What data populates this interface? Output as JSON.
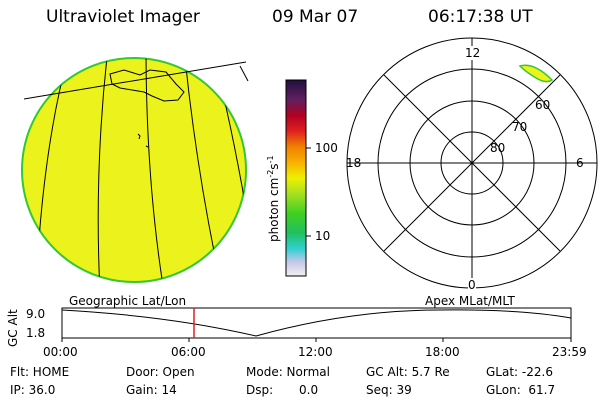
{
  "header": {
    "title": "Ultraviolet Imager",
    "date": "09 Mar 07",
    "time": "06:17:38 UT"
  },
  "colorbar": {
    "unit_label": "photon cm",
    "unit_exp1": "-2",
    "unit_mid": "s",
    "unit_exp2": "-1",
    "ticks": [
      "100",
      "10"
    ]
  },
  "polar_plot": {
    "mlt_labels": {
      "top": "12",
      "right": "6",
      "bottom": "0",
      "left": "18"
    },
    "mlat_labels": [
      "60",
      "70",
      "80"
    ]
  },
  "altitude_panel": {
    "axis_label": "GC Alt",
    "y_ticks": [
      "9.0",
      "1.8"
    ],
    "left_caption": "Geographic Lat/Lon",
    "right_caption": "Apex MLat/MLT",
    "x_ticks": [
      "00:00",
      "06:00",
      "12:00",
      "18:00",
      "23:59"
    ]
  },
  "info": {
    "row1": [
      "Flt: HOME",
      "Door: Open",
      "Mode: Normal",
      "GC Alt: 5.7 Re",
      "GLat: -22.6"
    ],
    "row2": [
      "IP: 36.0",
      "Gain: 14",
      "Dsp:",
      "0.0",
      "Seq: 39",
      "GLon:  61.7"
    ]
  },
  "colors": {
    "disk_fill": "#ecf21c",
    "disk_edge": "#32c832",
    "orbit_marker": "#e02020"
  }
}
